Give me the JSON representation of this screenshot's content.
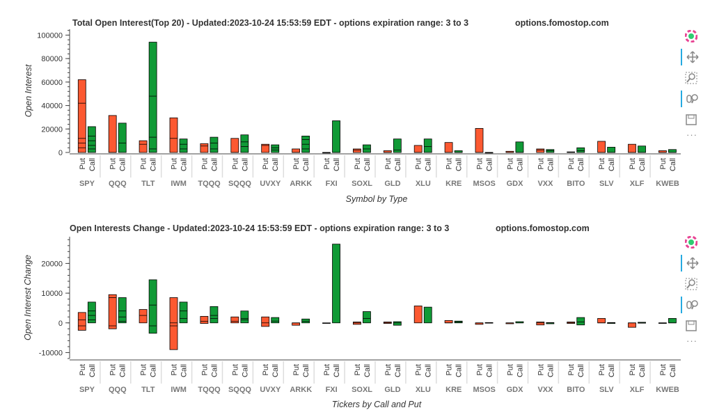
{
  "colors": {
    "put": "#fc5931",
    "call": "#109a36",
    "axis": "#444444"
  },
  "chart_data": [
    {
      "type": "bar",
      "title": "Total Open Interest(Top 20) - Updated:2023-10-24 15:53:59 EDT - options expiration range: 3 to 3",
      "site": "options.fomostop.com",
      "xlabel": "Symbol by Type",
      "ylabel": "Open Interest",
      "ylim": [
        0,
        105000
      ],
      "yticks": [
        0,
        20000,
        40000,
        60000,
        80000,
        100000
      ],
      "categories": [
        "SPY",
        "QQQ",
        "TLT",
        "IWM",
        "TQQQ",
        "SQQQ",
        "UVXY",
        "ARKK",
        "FXI",
        "SOXL",
        "GLD",
        "XLU",
        "KRE",
        "MSOS",
        "GDX",
        "VXX",
        "BITO",
        "SLV",
        "XLF",
        "KWEB"
      ],
      "subcategories": [
        "Put",
        "Call"
      ],
      "series": [
        {
          "name": "Put",
          "values": [
            62000,
            31500,
            10000,
            29500,
            7500,
            12000,
            7000,
            3000,
            0,
            3000,
            1500,
            6000,
            8500,
            20500,
            1000,
            3000,
            500,
            9500,
            7000,
            1500
          ],
          "inner_lines": [
            [
              42000,
              12000,
              8000,
              4000
            ],
            [
              0
            ],
            [
              7000
            ],
            [
              12000
            ],
            [
              5500
            ],
            [
              0
            ],
            [
              6000
            ],
            [
              0
            ],
            [
              0
            ],
            [
              2000
            ],
            [
              0
            ],
            [
              0
            ],
            [
              0
            ],
            [
              0
            ],
            [
              0
            ],
            [
              2000
            ],
            [
              0
            ],
            [
              0
            ],
            [
              0
            ],
            [
              0
            ]
          ]
        },
        {
          "name": "Call",
          "values": [
            22000,
            25000,
            94000,
            11500,
            13000,
            15000,
            6500,
            14000,
            27000,
            6500,
            11500,
            11500,
            1500,
            0,
            9000,
            2500,
            4000,
            4500,
            5500,
            2500
          ],
          "inner_lines": [
            [
              14000,
              10000,
              6000,
              3000
            ],
            [
              8000
            ],
            [
              48000,
              13000,
              3000
            ],
            [
              7000,
              3000
            ],
            [
              8000,
              3000
            ],
            [
              9000,
              5000
            ],
            [
              4000,
              2000
            ],
            [
              11000,
              7000,
              3000
            ],
            [
              0
            ],
            [
              3000
            ],
            [
              2000
            ],
            [
              5000
            ],
            [
              0
            ],
            [
              0
            ],
            [
              0
            ],
            [
              1500
            ],
            [
              1500
            ],
            [
              0
            ],
            [
              0
            ],
            [
              0
            ]
          ]
        }
      ]
    },
    {
      "type": "bar",
      "title": "Open Interests Change - Updated:2023-10-24 15:53:59 EDT - options expiration range: 3 to 3",
      "site": "options.fomostop.com",
      "xlabel": "Tickers by Call and Put",
      "ylabel": "Open Interest Change",
      "ylim": [
        -12000,
        29000
      ],
      "yticks": [
        -10000,
        0,
        10000,
        20000
      ],
      "categories": [
        "SPY",
        "QQQ",
        "TLT",
        "IWM",
        "TQQQ",
        "SQQQ",
        "UVXY",
        "ARKK",
        "FXI",
        "SOXL",
        "GLD",
        "XLU",
        "KRE",
        "MSOS",
        "GDX",
        "VXX",
        "BITO",
        "SLV",
        "XLF",
        "KWEB"
      ],
      "subcategories": [
        "Put",
        "Call"
      ],
      "series": [
        {
          "name": "Put",
          "ranges": [
            [
              -2500,
              3500
            ],
            [
              -2000,
              9500
            ],
            [
              0,
              4500
            ],
            [
              -9000,
              8500
            ],
            [
              -200,
              2200
            ],
            [
              0,
              2000
            ],
            [
              -1200,
              2000
            ],
            [
              -800,
              0
            ],
            [
              0,
              0
            ],
            [
              -500,
              300
            ],
            [
              -200,
              300
            ],
            [
              0,
              5700
            ],
            [
              0,
              800
            ],
            [
              -500,
              0
            ],
            [
              -300,
              0
            ],
            [
              -700,
              300
            ],
            [
              -200,
              300
            ],
            [
              0,
              1500
            ],
            [
              -1500,
              0
            ],
            [
              -100,
              0
            ]
          ],
          "inner_lines": [
            [
              1000,
              -1000
            ],
            [
              8500,
              -1000
            ],
            [
              2500
            ],
            [
              0,
              -1000
            ],
            [
              500
            ],
            [
              500
            ],
            [
              0
            ],
            [
              0
            ],
            [],
            [
              0
            ],
            [
              0
            ],
            [],
            [
              0
            ],
            [
              0
            ],
            [
              0
            ],
            [
              0
            ],
            [
              0
            ],
            [
              0
            ],
            [
              0
            ],
            [
              0
            ]
          ]
        },
        {
          "name": "Call",
          "ranges": [
            [
              0,
              7000
            ],
            [
              0,
              8500
            ],
            [
              -3500,
              14500
            ],
            [
              0,
              7000
            ],
            [
              0,
              5500
            ],
            [
              0,
              4000
            ],
            [
              0,
              1800
            ],
            [
              0,
              1300
            ],
            [
              0,
              26500
            ],
            [
              0,
              3800
            ],
            [
              -800,
              400
            ],
            [
              0,
              5300
            ],
            [
              0,
              600
            ],
            [
              -100,
              100
            ],
            [
              0,
              400
            ],
            [
              -300,
              100
            ],
            [
              -700,
              1800
            ],
            [
              -200,
              100
            ],
            [
              -100,
              200
            ],
            [
              0,
              1500
            ]
          ],
          "inner_lines": [
            [
              4000,
              2500,
              1000
            ],
            [
              4000,
              2000,
              500
            ],
            [
              6000,
              -1000
            ],
            [
              4000,
              1500
            ],
            [
              2500,
              1500
            ],
            [
              1500,
              1000
            ],
            [
              600
            ],
            [
              500
            ],
            [],
            [
              1500
            ],
            [
              0
            ],
            [],
            [
              300
            ],
            [
              0
            ],
            [
              0
            ],
            [
              0
            ],
            [
              300
            ],
            [
              0
            ],
            [
              0
            ],
            [
              0
            ]
          ]
        }
      ]
    }
  ]
}
